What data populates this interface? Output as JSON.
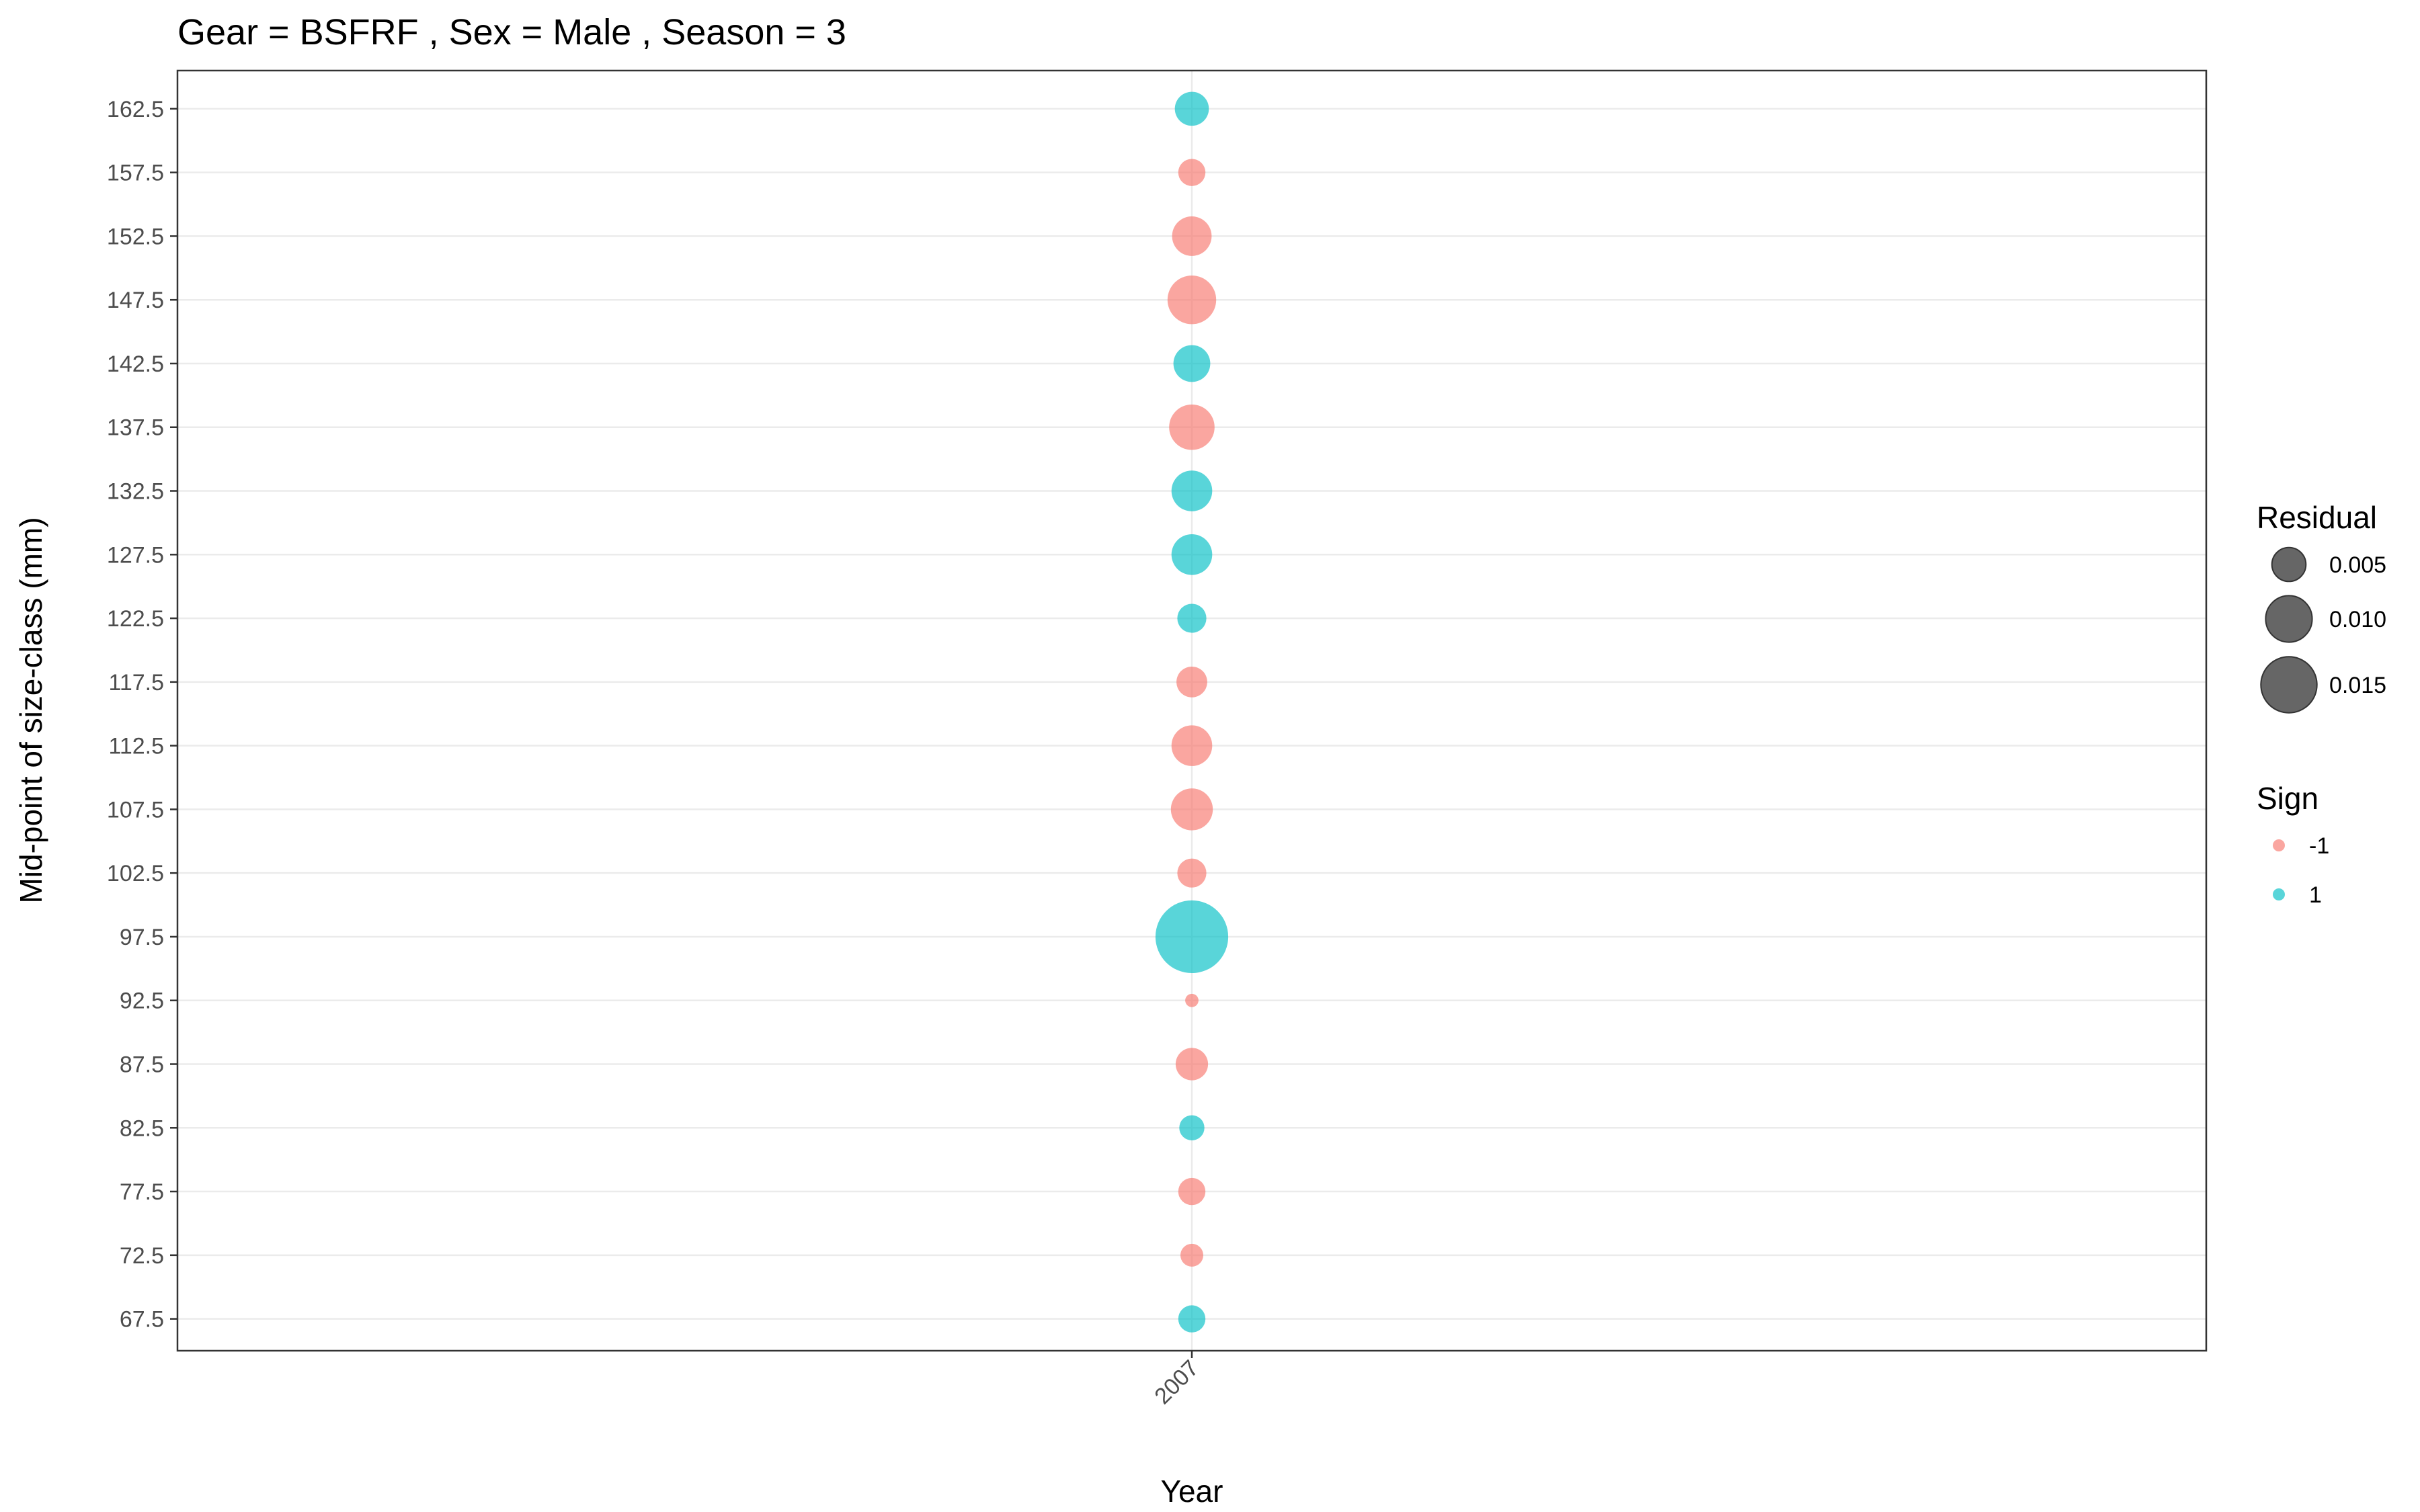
{
  "chart_data": {
    "type": "scatter",
    "title": "Gear = BSFRF , Sex = Male , Season = 3",
    "xlabel": "Year",
    "ylabel": "Mid-point of size-class (mm)",
    "x_categories": [
      "2007"
    ],
    "y_ticks": [
      "67.5",
      "72.5",
      "77.5",
      "82.5",
      "87.5",
      "92.5",
      "97.5",
      "102.5",
      "107.5",
      "112.5",
      "117.5",
      "122.5",
      "127.5",
      "132.5",
      "137.5",
      "142.5",
      "147.5",
      "152.5",
      "157.5",
      "162.5"
    ],
    "ylim": [
      65,
      165.5
    ],
    "grid": true,
    "size_legend": {
      "title": "Residual",
      "entries": [
        {
          "label": "0.005",
          "value": 0.005
        },
        {
          "label": "0.010",
          "value": 0.01
        },
        {
          "label": "0.015",
          "value": 0.015
        }
      ]
    },
    "color_legend": {
      "title": "Sign",
      "entries": [
        {
          "label": "-1",
          "color": "#F8766D"
        },
        {
          "label": "1",
          "color": "#00BFC4"
        }
      ]
    },
    "legend_position": "right",
    "points": [
      {
        "x": "2007",
        "y": 162.5,
        "residual": 0.005,
        "sign": 1
      },
      {
        "x": "2007",
        "y": 157.5,
        "residual": 0.003,
        "sign": -1
      },
      {
        "x": "2007",
        "y": 152.5,
        "residual": 0.007,
        "sign": -1
      },
      {
        "x": "2007",
        "y": 147.5,
        "residual": 0.011,
        "sign": -1
      },
      {
        "x": "2007",
        "y": 142.5,
        "residual": 0.006,
        "sign": 1
      },
      {
        "x": "2007",
        "y": 137.5,
        "residual": 0.0095,
        "sign": -1
      },
      {
        "x": "2007",
        "y": 132.5,
        "residual": 0.0075,
        "sign": 1
      },
      {
        "x": "2007",
        "y": 127.5,
        "residual": 0.0075,
        "sign": 1
      },
      {
        "x": "2007",
        "y": 122.5,
        "residual": 0.0035,
        "sign": 1
      },
      {
        "x": "2007",
        "y": 117.5,
        "residual": 0.004,
        "sign": -1
      },
      {
        "x": "2007",
        "y": 112.5,
        "residual": 0.0075,
        "sign": -1
      },
      {
        "x": "2007",
        "y": 107.5,
        "residual": 0.008,
        "sign": -1
      },
      {
        "x": "2007",
        "y": 102.5,
        "residual": 0.0035,
        "sign": -1
      },
      {
        "x": "2007",
        "y": 97.5,
        "residual": 0.026,
        "sign": 1
      },
      {
        "x": "2007",
        "y": 92.5,
        "residual": 0.0005,
        "sign": -1
      },
      {
        "x": "2007",
        "y": 87.5,
        "residual": 0.0045,
        "sign": -1
      },
      {
        "x": "2007",
        "y": 82.5,
        "residual": 0.0025,
        "sign": 1
      },
      {
        "x": "2007",
        "y": 77.5,
        "residual": 0.003,
        "sign": -1
      },
      {
        "x": "2007",
        "y": 72.5,
        "residual": 0.002,
        "sign": -1
      },
      {
        "x": "2007",
        "y": 67.5,
        "residual": 0.003,
        "sign": 1
      }
    ]
  }
}
